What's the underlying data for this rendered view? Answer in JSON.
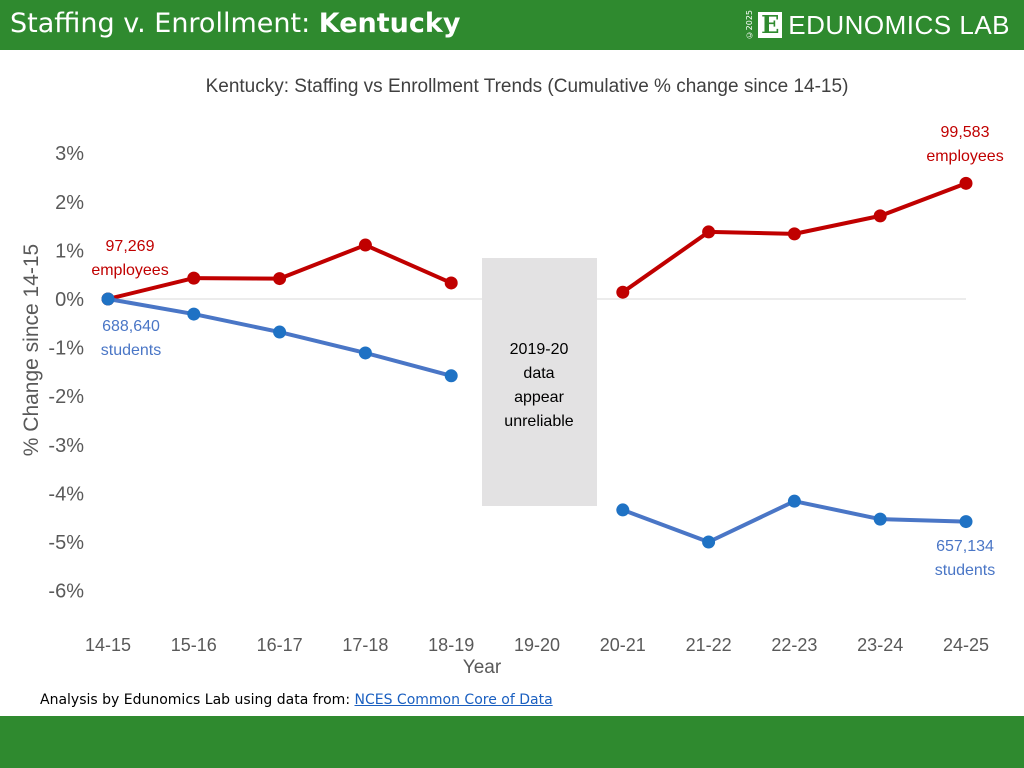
{
  "header": {
    "title_prefix": "Staffing v. Enrollment: ",
    "title_state": "Kentucky",
    "logo_copyright": "©2025",
    "logo_mark": "E",
    "logo_text": "EDUNOMICS LAB"
  },
  "footer": {
    "note": "Analysis by Edunomics Lab using data from: ",
    "link_text": "NCES Common Core of Data"
  },
  "colors": {
    "brand_green": "#2f8a2f",
    "staff": "#c00000",
    "students_line": "#4a76c6",
    "students_marker": "#1f72c4"
  },
  "chart_data": {
    "type": "line",
    "title": "Kentucky: Staffing vs Enrollment Trends (Cumulative % change since 14-15)",
    "xlabel": "Year",
    "ylabel": "% Change since 14-15",
    "categories": [
      "14-15",
      "15-16",
      "16-17",
      "17-18",
      "18-19",
      "19-20",
      "20-21",
      "21-22",
      "22-23",
      "23-24",
      "24-25"
    ],
    "ylim": [
      -6,
      3
    ],
    "yticks": [
      "3%",
      "2%",
      "1%",
      "0%",
      "-1%",
      "-2%",
      "-3%",
      "-4%",
      "-5%",
      "-6%"
    ],
    "ytick_values": [
      3,
      2,
      1,
      0,
      -1,
      -2,
      -3,
      -4,
      -5,
      -6
    ],
    "grid": false,
    "series": [
      {
        "key": "staff",
        "values": [
          0,
          0.43,
          0.42,
          1.11,
          0.33,
          null,
          0.14,
          1.38,
          1.34,
          1.71,
          2.38
        ]
      },
      {
        "key": "students",
        "values": [
          0,
          -0.31,
          -0.68,
          -1.11,
          -1.58,
          null,
          -4.34,
          -5.0,
          -4.16,
          -4.53,
          -4.58
        ]
      }
    ],
    "annotations": {
      "staff_start": [
        "97,269",
        "employees"
      ],
      "staff_end": [
        "99,583",
        "employees"
      ],
      "students_start": [
        "688,640",
        "students"
      ],
      "students_end": [
        "657,134",
        "students"
      ],
      "gap_note": [
        "2019-20",
        "data",
        "appear",
        "unreliable"
      ]
    }
  }
}
